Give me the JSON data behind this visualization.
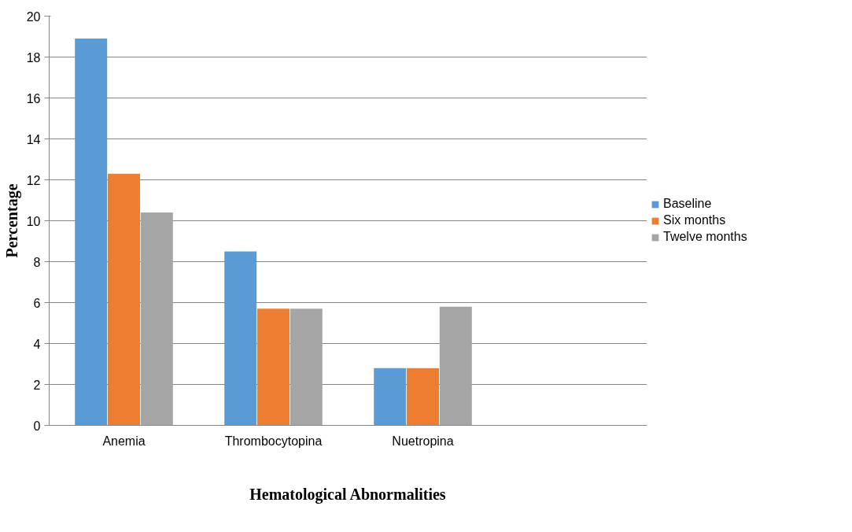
{
  "chart_data": {
    "type": "bar",
    "xlabel": "Hematological Abnormalities",
    "ylabel": "Percentage",
    "categories": [
      "Anemia",
      "Thrombocytopina",
      "Nuetropina",
      null
    ],
    "series": [
      {
        "name": "Baseline",
        "color": "#5b9bd5",
        "values": [
          18.9,
          8.5,
          2.8,
          null
        ]
      },
      {
        "name": "Six months",
        "color": "#ed7d31",
        "values": [
          12.3,
          5.7,
          2.8,
          null
        ]
      },
      {
        "name": "Twelve months",
        "color": "#a5a5a5",
        "values": [
          10.4,
          5.7,
          5.8,
          null
        ]
      }
    ],
    "ylim": [
      0,
      20
    ],
    "yticks": [
      0,
      2,
      4,
      6,
      8,
      10,
      12,
      14,
      16,
      18,
      20
    ],
    "grid": "y",
    "legend": "right"
  }
}
